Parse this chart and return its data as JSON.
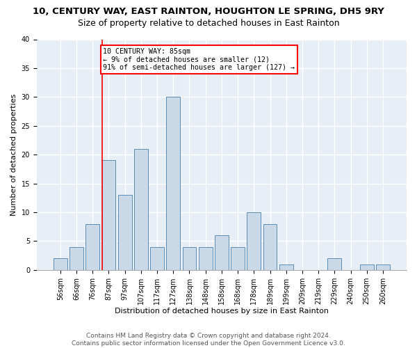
{
  "title": "10, CENTURY WAY, EAST RAINTON, HOUGHTON LE SPRING, DH5 9RY",
  "subtitle": "Size of property relative to detached houses in East Rainton",
  "xlabel": "Distribution of detached houses by size in East Rainton",
  "ylabel": "Number of detached properties",
  "bar_labels": [
    "56sqm",
    "66sqm",
    "76sqm",
    "87sqm",
    "97sqm",
    "107sqm",
    "117sqm",
    "127sqm",
    "138sqm",
    "148sqm",
    "158sqm",
    "168sqm",
    "178sqm",
    "189sqm",
    "199sqm",
    "209sqm",
    "219sqm",
    "229sqm",
    "240sqm",
    "250sqm",
    "260sqm"
  ],
  "bar_values": [
    2,
    4,
    8,
    19,
    13,
    21,
    4,
    30,
    4,
    4,
    6,
    4,
    10,
    8,
    1,
    0,
    0,
    2,
    0,
    1,
    1
  ],
  "bar_color": "#c9d9e8",
  "bar_edge_color": "#5b8db8",
  "vline_x_index": 3,
  "annotation_line1": "10 CENTURY WAY: 85sqm",
  "annotation_line2": "← 9% of detached houses are smaller (12)",
  "annotation_line3": "91% of semi-detached houses are larger (127) →",
  "annotation_box_color": "white",
  "annotation_box_edge_color": "red",
  "vline_color": "red",
  "ylim": [
    0,
    40
  ],
  "yticks": [
    0,
    5,
    10,
    15,
    20,
    25,
    30,
    35,
    40
  ],
  "footer": "Contains HM Land Registry data © Crown copyright and database right 2024.\nContains public sector information licensed under the Open Government Licence v3.0.",
  "bg_color": "#e8eef5",
  "grid_color": "white",
  "title_fontsize": 9.5,
  "subtitle_fontsize": 9,
  "tick_fontsize": 7,
  "axis_label_fontsize": 8,
  "footer_fontsize": 6.5
}
